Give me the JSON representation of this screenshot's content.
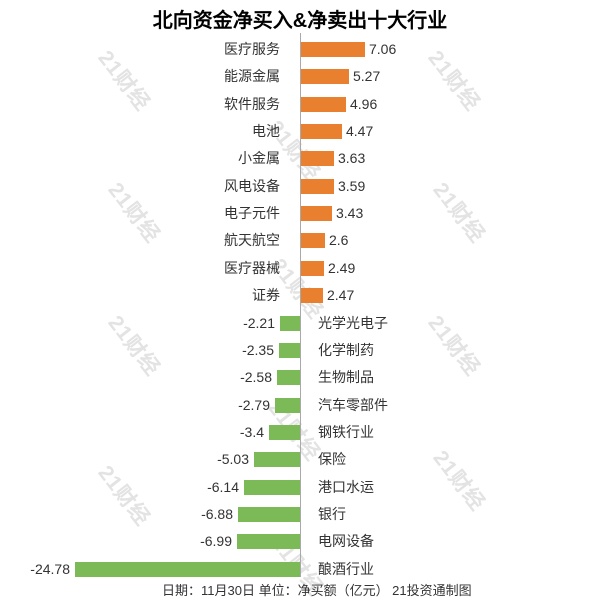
{
  "chart_data": {
    "type": "bar",
    "orientation": "horizontal",
    "title": "北向资金净买入&净卖出十大行业",
    "categories": [
      "医疗服务",
      "能源金属",
      "软件服务",
      "电池",
      "小金属",
      "风电设备",
      "电子元件",
      "航天航空",
      "医疗器械",
      "证券",
      "光学光电子",
      "化学制药",
      "生物制品",
      "汽车零部件",
      "钢铁行业",
      "保险",
      "港口水运",
      "银行",
      "电网设备",
      "酿酒行业"
    ],
    "values": [
      7.06,
      5.27,
      4.96,
      4.47,
      3.63,
      3.59,
      3.43,
      2.6,
      2.49,
      2.47,
      -2.21,
      -2.35,
      -2.58,
      -2.79,
      -3.4,
      -5.03,
      -6.14,
      -6.88,
      -6.99,
      -24.78
    ],
    "value_labels": [
      "7.06",
      "5.27",
      "4.96",
      "4.47",
      "3.63",
      "3.59",
      "3.43",
      "2.6",
      "2.49",
      "2.47",
      "-2.21",
      "-2.35",
      "-2.58",
      "-2.79",
      "-3.4",
      "-5.03",
      "-6.14",
      "-6.88",
      "-6.99",
      "-24.78"
    ],
    "xlabel": "",
    "ylabel": "",
    "unit": "净买额（亿元）",
    "date": "11月30日",
    "credit": "21投资通制图",
    "legend": "none",
    "grid": false,
    "zero_baseline": true
  },
  "footer": {
    "text": "日期：11月30日 单位：净买额（亿元） 21投资通制图"
  },
  "watermark": {
    "text": "21财经"
  },
  "colors": {
    "positive_bar": "#E8802F",
    "negative_bar": "#7CB957",
    "axis_line": "#A9A9A9",
    "title_text": "#000000",
    "label_text": "#333333",
    "footer_text": "#333333",
    "watermark_text": "#E3E3E3",
    "background": "#FFFFFF"
  }
}
